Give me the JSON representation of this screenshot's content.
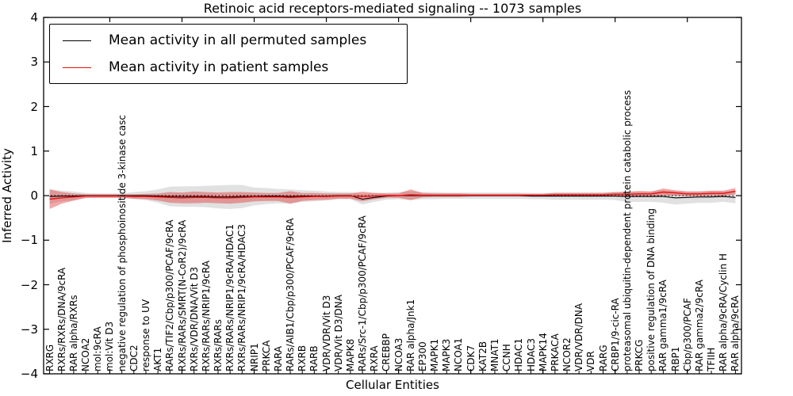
{
  "title": "Retinoic acid receptors-mediated signaling -- 1073 samples",
  "legend": {
    "entries": [
      {
        "label": "Mean activity in all permuted samples",
        "color": "#000000"
      },
      {
        "label": "Mean activity in patient samples",
        "color": "#e81010"
      }
    ]
  },
  "colors": {
    "permuted_line": "#000000",
    "permuted_band": "#c9c9c9",
    "patient_line": "#e81010",
    "patient_band": "#e03030",
    "zero_line": "#000000",
    "axis": "#000000",
    "background": "#ffffff"
  },
  "chart_data": {
    "type": "line",
    "title": "Retinoic acid receptors-mediated signaling -- 1073 samples",
    "xlabel": "Cellular Entities",
    "ylabel": "Inferred Activity",
    "ylim": [
      -4,
      4
    ],
    "yticks": [
      4,
      3,
      2,
      1,
      0,
      -1,
      -2,
      -3,
      -4
    ],
    "ytick_labels": [
      "4",
      "3",
      "2",
      "1",
      "0",
      "−1",
      "−2",
      "−3",
      "−4"
    ],
    "grid": false,
    "legend_position": "upper left",
    "zero_line": {
      "value": 0,
      "style": "dotted",
      "color": "#000000"
    },
    "categories": [
      "RXRG",
      "RXRs/RXRs/DNA/9cRA",
      "RAR alpha/RXRs",
      "NCOA2",
      "mol:9cRA",
      "mol:Vit D3",
      "negative regulation of phosphoinositide 3-kinase casc",
      "CDC2",
      "response to UV",
      "AKT1",
      "RARs/TIF2/Cbp/p300/PCAF/9cRA",
      "RXRs/RARs/SMRT(N-CoR2)/9cRA",
      "RXRs/VDR/DNA/Vit D3",
      "RXRs/RARs/NRIP1/9cRA",
      "RXRs/RARs",
      "RXRs/RARs/NRIP1/9cRA/HDAC1",
      "RXRs/RARs/NRIP1/9cRA/HDAC3",
      "NRIP1",
      "PRKCA",
      "RARA",
      "RARs/AIB1/Cbp/p300/PCAF/9cRA",
      "RXRB",
      "RARB",
      "VDR/VDR/Vit D3",
      "VDR/Vit D3/DNA",
      "MAPK8",
      "RARs/Src-1/Cbp/p300/PCAF/9cRA",
      "RXRA",
      "CREBBP",
      "NCOA3",
      "RAR alpha/Jnk1",
      "EP300",
      "MAPK1",
      "MAPK3",
      "NCOA1",
      "CDK7",
      "KAT2B",
      "MNAT1",
      "CCNH",
      "HDAC1",
      "HDAC3",
      "MAPK14",
      "PRKACA",
      "NCOR2",
      "VDR/VDR/DNA",
      "VDR",
      "RARG",
      "CRBP1/9-cic-RA",
      "proteasomal ubiquitin-dependent protein catabolic process",
      "PRKCG",
      "positive regulation of DNA binding",
      "RAR gamma1/9cRA",
      "RBP1",
      "Cbp/p300/PCAF",
      "RAR gamma2/9cRA",
      "TFIIH",
      "RAR alpha/9cRA/Cyclin H",
      "RAR alpha/9cRA"
    ],
    "series": [
      {
        "name": "Mean activity in all permuted samples",
        "color": "#000000",
        "band_color": "#c9c9c9",
        "values": [
          -0.02,
          -0.01,
          -0.01,
          0,
          0,
          0,
          0,
          0,
          0,
          -0.01,
          -0.02,
          -0.02,
          -0.02,
          -0.02,
          -0.03,
          -0.03,
          -0.02,
          -0.02,
          -0.01,
          -0.01,
          -0.02,
          -0.01,
          -0.01,
          -0.01,
          0,
          0,
          -0.08,
          -0.04,
          -0.01,
          0,
          0,
          0,
          0,
          0,
          0,
          0,
          0,
          0,
          0,
          0,
          -0.01,
          -0.01,
          -0.01,
          -0.01,
          -0.01,
          -0.01,
          -0.01,
          -0.01,
          -0.02,
          -0.02,
          -0.02,
          -0.02,
          -0.05,
          -0.04,
          -0.03,
          -0.03,
          -0.02,
          -0.04
        ],
        "band_half_width": [
          0.16,
          0.12,
          0.1,
          0.06,
          0.05,
          0.05,
          0.05,
          0.08,
          0.1,
          0.15,
          0.22,
          0.23,
          0.23,
          0.24,
          0.26,
          0.27,
          0.26,
          0.2,
          0.18,
          0.16,
          0.16,
          0.13,
          0.12,
          0.1,
          0.08,
          0.08,
          0.12,
          0.1,
          0.08,
          0.08,
          0.1,
          0.08,
          0.08,
          0.07,
          0.07,
          0.07,
          0.07,
          0.07,
          0.07,
          0.07,
          0.07,
          0.07,
          0.08,
          0.08,
          0.08,
          0.08,
          0.08,
          0.09,
          0.12,
          0.12,
          0.12,
          0.14,
          0.15,
          0.14,
          0.13,
          0.13,
          0.12,
          0.13
        ]
      },
      {
        "name": "Mean activity in patient samples",
        "color": "#e81010",
        "band_color": "#e03030",
        "values": [
          -0.08,
          -0.05,
          -0.03,
          -0.01,
          -0.01,
          -0.01,
          -0.01,
          -0.02,
          -0.02,
          -0.03,
          -0.04,
          -0.05,
          -0.04,
          -0.04,
          -0.05,
          -0.05,
          -0.04,
          -0.03,
          -0.03,
          -0.03,
          -0.04,
          -0.03,
          -0.02,
          -0.02,
          -0.01,
          -0.01,
          -0.02,
          -0.01,
          0,
          0,
          0.02,
          0.01,
          0.01,
          0.01,
          0.01,
          0.01,
          0.01,
          0.01,
          0.01,
          0.01,
          0.01,
          0.01,
          0.02,
          0.02,
          0.02,
          0.02,
          0.02,
          0.03,
          0.03,
          0.04,
          0.04,
          0.08,
          0.06,
          0.04,
          0.04,
          0.05,
          0.05,
          0.1
        ],
        "band_half_width": [
          0.22,
          0.13,
          0.08,
          0.04,
          0.04,
          0.04,
          0.04,
          0.05,
          0.06,
          0.08,
          0.12,
          0.12,
          0.13,
          0.12,
          0.12,
          0.13,
          0.12,
          0.1,
          0.09,
          0.09,
          0.14,
          0.09,
          0.08,
          0.07,
          0.06,
          0.06,
          0.11,
          0.07,
          0.05,
          0.05,
          0.12,
          0.05,
          0.04,
          0.04,
          0.04,
          0.03,
          0.03,
          0.03,
          0.03,
          0.03,
          0.03,
          0.03,
          0.04,
          0.04,
          0.04,
          0.04,
          0.04,
          0.05,
          0.05,
          0.06,
          0.05,
          0.08,
          0.06,
          0.05,
          0.05,
          0.06,
          0.06,
          0.07
        ]
      }
    ]
  }
}
